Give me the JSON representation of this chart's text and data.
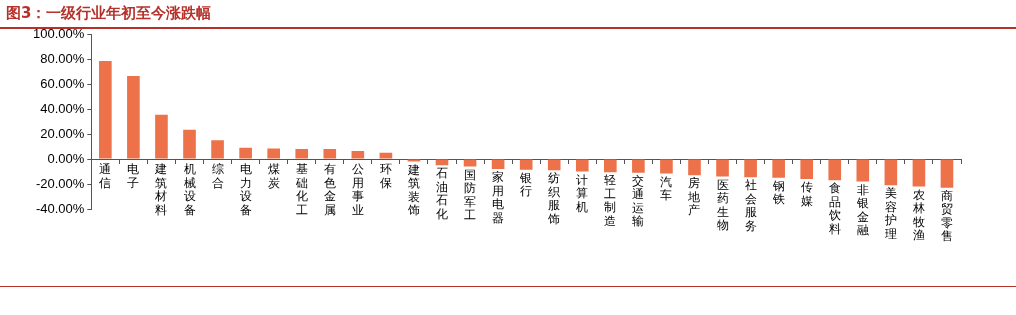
{
  "chart_data": {
    "type": "bar",
    "title": "图3：一级行业年初至今涨跌幅",
    "categories": [
      "通信",
      "电子",
      "建筑材料",
      "机械设备",
      "综合",
      "电力设备",
      "煤炭",
      "基础化工",
      "有色金属",
      "公用事业",
      "环保",
      "建筑装饰",
      "石油石化",
      "国防军工",
      "家用电器",
      "银行",
      "纺织服饰",
      "计算机",
      "轻工制造",
      "交通运输",
      "汽车",
      "房地产",
      "医药生物",
      "社会服务",
      "钢铁",
      "传媒",
      "食品饮料",
      "非银金融",
      "美容护理",
      "农林牧渔",
      "商贸零售"
    ],
    "values": [
      78.5,
      66.5,
      35.5,
      23.5,
      15,
      9,
      8.5,
      8,
      8,
      6.5,
      5,
      -2,
      -5,
      -6,
      -8,
      -8.5,
      -9,
      -10,
      -10.5,
      -11,
      -11.5,
      -13,
      -14,
      -14.5,
      -15,
      -16,
      -17,
      -18,
      -21,
      -22,
      -23
    ],
    "color": "#ed7149",
    "ylim": [
      -40,
      100
    ],
    "yticks": [
      {
        "value": -40,
        "label": "-40.00%"
      },
      {
        "value": -20,
        "label": "-20.00%"
      },
      {
        "value": 0,
        "label": "0.00%"
      },
      {
        "value": 20,
        "label": "20.00%"
      },
      {
        "value": 40,
        "label": "40.00%"
      },
      {
        "value": 60,
        "label": "60.00%"
      },
      {
        "value": 80,
        "label": "80.00%"
      },
      {
        "value": 100,
        "label": "100.00%"
      }
    ],
    "grid": false,
    "legend": false
  }
}
